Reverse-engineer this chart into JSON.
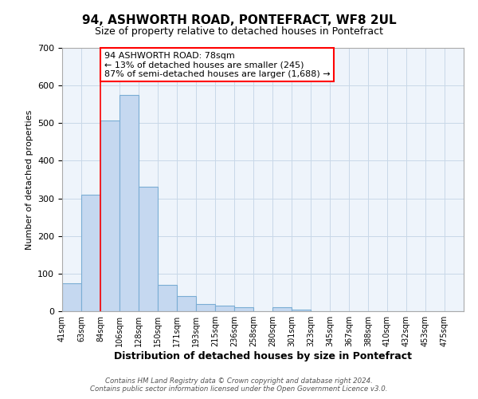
{
  "title": "94, ASHWORTH ROAD, PONTEFRACT, WF8 2UL",
  "subtitle": "Size of property relative to detached houses in Pontefract",
  "xlabel": "Distribution of detached houses by size in Pontefract",
  "ylabel": "Number of detached properties",
  "bar_color": "#c5d8f0",
  "bar_edge_color": "#7aadd4",
  "background_color": "#ffffff",
  "grid_color": "#c8d8e8",
  "bin_labels": [
    "41sqm",
    "63sqm",
    "84sqm",
    "106sqm",
    "128sqm",
    "150sqm",
    "171sqm",
    "193sqm",
    "215sqm",
    "236sqm",
    "258sqm",
    "280sqm",
    "301sqm",
    "323sqm",
    "345sqm",
    "367sqm",
    "388sqm",
    "410sqm",
    "432sqm",
    "453sqm",
    "475sqm"
  ],
  "bar_heights": [
    75,
    310,
    507,
    575,
    330,
    70,
    40,
    20,
    15,
    10,
    0,
    10,
    5,
    0,
    0,
    0,
    0,
    0,
    0,
    0,
    0
  ],
  "ylim": [
    0,
    700
  ],
  "yticks": [
    0,
    100,
    200,
    300,
    400,
    500,
    600,
    700
  ],
  "red_line_x": 2,
  "annotation_title": "94 ASHWORTH ROAD: 78sqm",
  "annotation_line1": "← 13% of detached houses are smaller (245)",
  "annotation_line2": "87% of semi-detached houses are larger (1,688) →",
  "footer_line1": "Contains HM Land Registry data © Crown copyright and database right 2024.",
  "footer_line2": "Contains public sector information licensed under the Open Government Licence v3.0."
}
